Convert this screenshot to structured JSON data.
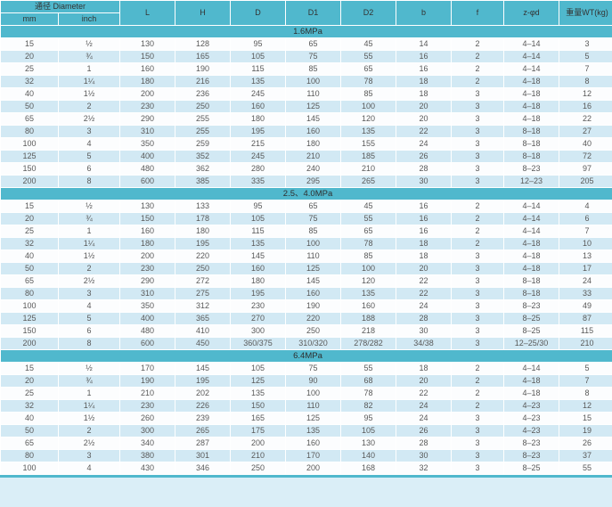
{
  "colors": {
    "teal": "#50b8cd",
    "row_base": "#fcfdfe",
    "row_alt": "#d2e9f4",
    "grid_lines": "#ffffff",
    "header_text": "#333333",
    "data_text": "#595959"
  },
  "table": {
    "header": {
      "diameter_group": "通径 Diameter",
      "mm_label": "mm",
      "inch_label": "inch",
      "cols": [
        "L",
        "H",
        "D",
        "D1",
        "D2",
        "b",
        "f",
        "z-φd",
        "重量WT(kg)"
      ]
    },
    "sections": [
      {
        "label": "1.6MPa",
        "rows": [
          [
            "15",
            "½",
            "130",
            "128",
            "95",
            "65",
            "45",
            "14",
            "2",
            "4–14",
            "3"
          ],
          [
            "20",
            "¾",
            "150",
            "165",
            "105",
            "75",
            "55",
            "16",
            "2",
            "4–14",
            "5"
          ],
          [
            "25",
            "1",
            "160",
            "190",
            "115",
            "85",
            "65",
            "16",
            "2",
            "4–14",
            "7"
          ],
          [
            "32",
            "1¼",
            "180",
            "216",
            "135",
            "100",
            "78",
            "18",
            "2",
            "4–18",
            "8"
          ],
          [
            "40",
            "1½",
            "200",
            "236",
            "245",
            "110",
            "85",
            "18",
            "3",
            "4–18",
            "12"
          ],
          [
            "50",
            "2",
            "230",
            "250",
            "160",
            "125",
            "100",
            "20",
            "3",
            "4–18",
            "16"
          ],
          [
            "65",
            "2½",
            "290",
            "255",
            "180",
            "145",
            "120",
            "20",
            "3",
            "4–18",
            "22"
          ],
          [
            "80",
            "3",
            "310",
            "255",
            "195",
            "160",
            "135",
            "22",
            "3",
            "8–18",
            "27"
          ],
          [
            "100",
            "4",
            "350",
            "259",
            "215",
            "180",
            "155",
            "24",
            "3",
            "8–18",
            "40"
          ],
          [
            "125",
            "5",
            "400",
            "352",
            "245",
            "210",
            "185",
            "26",
            "3",
            "8–18",
            "72"
          ],
          [
            "150",
            "6",
            "480",
            "362",
            "280",
            "240",
            "210",
            "28",
            "3",
            "8–23",
            "97"
          ],
          [
            "200",
            "8",
            "600",
            "385",
            "335",
            "295",
            "265",
            "30",
            "3",
            "12–23",
            "205"
          ]
        ]
      },
      {
        "label": "2.5、4.0MPa",
        "rows": [
          [
            "15",
            "½",
            "130",
            "133",
            "95",
            "65",
            "45",
            "16",
            "2",
            "4–14",
            "4"
          ],
          [
            "20",
            "¾",
            "150",
            "178",
            "105",
            "75",
            "55",
            "16",
            "2",
            "4–14",
            "6"
          ],
          [
            "25",
            "1",
            "160",
            "180",
            "115",
            "85",
            "65",
            "16",
            "2",
            "4–14",
            "7"
          ],
          [
            "32",
            "1¼",
            "180",
            "195",
            "135",
            "100",
            "78",
            "18",
            "2",
            "4–18",
            "10"
          ],
          [
            "40",
            "1½",
            "200",
            "220",
            "145",
            "110",
            "85",
            "18",
            "3",
            "4–18",
            "13"
          ],
          [
            "50",
            "2",
            "230",
            "250",
            "160",
            "125",
            "100",
            "20",
            "3",
            "4–18",
            "17"
          ],
          [
            "65",
            "2½",
            "290",
            "272",
            "180",
            "145",
            "120",
            "22",
            "3",
            "8–18",
            "24"
          ],
          [
            "80",
            "3",
            "310",
            "275",
            "195",
            "160",
            "135",
            "22",
            "3",
            "8–18",
            "33"
          ],
          [
            "100",
            "4",
            "350",
            "312",
            "230",
            "190",
            "160",
            "24",
            "3",
            "8–23",
            "49"
          ],
          [
            "125",
            "5",
            "400",
            "365",
            "270",
            "220",
            "188",
            "28",
            "3",
            "8–25",
            "87"
          ],
          [
            "150",
            "6",
            "480",
            "410",
            "300",
            "250",
            "218",
            "30",
            "3",
            "8–25",
            "115"
          ],
          [
            "200",
            "8",
            "600",
            "450",
            "360/375",
            "310/320",
            "278/282",
            "34/38",
            "3",
            "12–25/30",
            "210"
          ]
        ]
      },
      {
        "label": "6.4MPa",
        "rows": [
          [
            "15",
            "½",
            "170",
            "145",
            "105",
            "75",
            "55",
            "18",
            "2",
            "4–14",
            "5"
          ],
          [
            "20",
            "¾",
            "190",
            "195",
            "125",
            "90",
            "68",
            "20",
            "2",
            "4–18",
            "7"
          ],
          [
            "25",
            "1",
            "210",
            "202",
            "135",
            "100",
            "78",
            "22",
            "2",
            "4–18",
            "8"
          ],
          [
            "32",
            "1¼",
            "230",
            "226",
            "150",
            "110",
            "82",
            "24",
            "2",
            "4–23",
            "12"
          ],
          [
            "40",
            "1½",
            "260",
            "239",
            "165",
            "125",
            "95",
            "24",
            "3",
            "4–23",
            "15"
          ],
          [
            "50",
            "2",
            "300",
            "265",
            "175",
            "135",
            "105",
            "26",
            "3",
            "4–23",
            "19"
          ],
          [
            "65",
            "2½",
            "340",
            "287",
            "200",
            "160",
            "130",
            "28",
            "3",
            "8–23",
            "26"
          ],
          [
            "80",
            "3",
            "380",
            "301",
            "210",
            "170",
            "140",
            "30",
            "3",
            "8–23",
            "37"
          ],
          [
            "100",
            "4",
            "430",
            "346",
            "250",
            "200",
            "168",
            "32",
            "3",
            "8–25",
            "55"
          ]
        ]
      }
    ]
  }
}
